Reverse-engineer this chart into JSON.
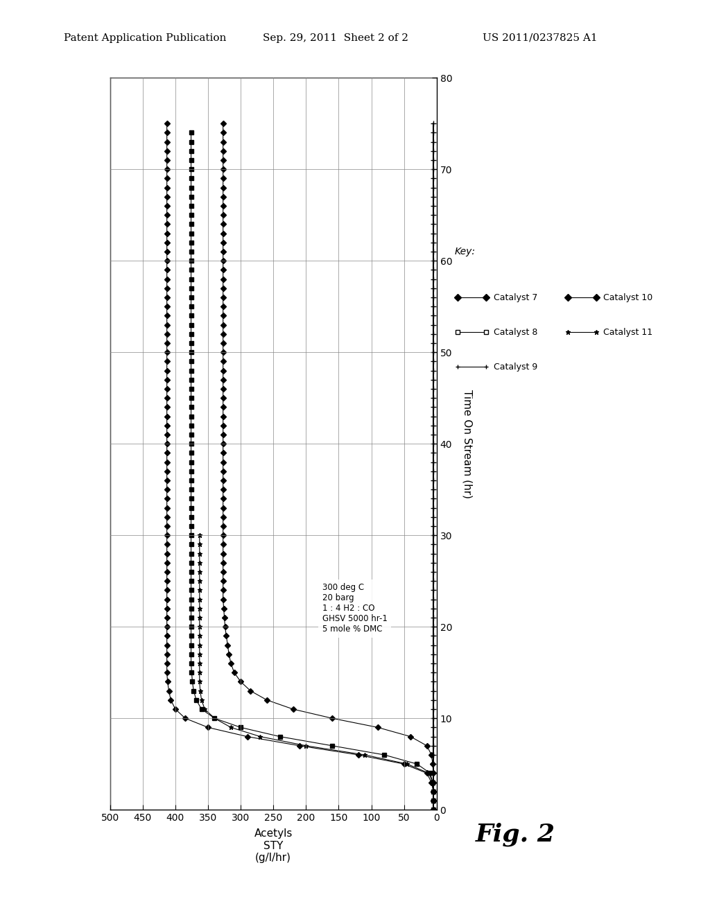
{
  "header_left": "Patent Application Publication",
  "header_center": "Sep. 29, 2011  Sheet 2 of 2",
  "header_right": "US 2011/0237825 A1",
  "xlabel_bottom": "Acetyls\nSTY\n(g/l/hr)",
  "xlabel_right": "Time On Stream (hr)",
  "xlim": [
    500,
    0
  ],
  "ylim": [
    0,
    80
  ],
  "xticks": [
    500,
    450,
    400,
    350,
    300,
    250,
    200,
    150,
    100,
    50,
    0
  ],
  "yticks": [
    0,
    10,
    20,
    30,
    40,
    50,
    60,
    70,
    80
  ],
  "annotation": "300 deg C\n20 barg\n1 : 4 H2 : CO\nGHSV 5000 hr-1\n5 mole % DMC",
  "fig_label": "Fig. 2",
  "key_label": "Key:",
  "background_color": "#ffffff",
  "grid_color": "#888888",
  "cat7_sty": [
    5,
    5,
    5,
    8,
    15,
    50,
    120,
    210,
    290,
    350,
    385,
    400,
    407,
    410,
    412,
    413,
    413,
    413,
    413,
    413,
    413,
    413,
    413,
    413,
    413,
    413,
    413,
    413,
    413,
    413,
    413,
    413,
    413,
    413,
    413,
    413,
    413,
    413,
    413,
    413,
    413,
    413,
    413,
    413,
    413,
    413,
    413,
    413,
    413,
    413,
    413,
    413,
    413,
    413,
    413,
    413,
    413,
    413,
    413,
    413,
    413,
    413,
    413,
    413,
    413,
    413,
    413,
    413,
    413,
    413,
    413,
    413,
    413,
    413,
    413,
    413
  ],
  "cat7_t": [
    0,
    1,
    2,
    3,
    4,
    5,
    6,
    7,
    8,
    9,
    10,
    11,
    12,
    13,
    14,
    15,
    16,
    17,
    18,
    19,
    20,
    21,
    22,
    23,
    24,
    25,
    26,
    27,
    28,
    29,
    30,
    31,
    32,
    33,
    34,
    35,
    36,
    37,
    38,
    39,
    40,
    41,
    42,
    43,
    44,
    45,
    46,
    47,
    48,
    49,
    50,
    51,
    52,
    53,
    54,
    55,
    56,
    57,
    58,
    59,
    60,
    61,
    62,
    63,
    64,
    65,
    66,
    67,
    68,
    69,
    70,
    71,
    72,
    73,
    74,
    75
  ],
  "cat8_sty": [
    5,
    5,
    5,
    6,
    10,
    30,
    80,
    160,
    240,
    300,
    340,
    360,
    368,
    372,
    374,
    375,
    376,
    376,
    376,
    376,
    376,
    376,
    376,
    376,
    376,
    376,
    376,
    376,
    376,
    376,
    376,
    376,
    376,
    376,
    376,
    376,
    376,
    376,
    376,
    376,
    376,
    376,
    376,
    376,
    376,
    376,
    376,
    376,
    376,
    376,
    376,
    376,
    376,
    376,
    376,
    376,
    376,
    376,
    376,
    376,
    376,
    376,
    376,
    376,
    376,
    376,
    376,
    376,
    376,
    376,
    376,
    376,
    376,
    376,
    376
  ],
  "cat8_t": [
    0,
    1,
    2,
    3,
    4,
    5,
    6,
    7,
    8,
    9,
    10,
    11,
    12,
    13,
    14,
    15,
    16,
    17,
    18,
    19,
    20,
    21,
    22,
    23,
    24,
    25,
    26,
    27,
    28,
    29,
    30,
    31,
    32,
    33,
    34,
    35,
    36,
    37,
    38,
    39,
    40,
    41,
    42,
    43,
    44,
    45,
    46,
    47,
    48,
    49,
    50,
    51,
    52,
    53,
    54,
    55,
    56,
    57,
    58,
    59,
    60,
    61,
    62,
    63,
    64,
    65,
    66,
    67,
    68,
    69,
    70,
    71,
    72,
    73,
    74
  ],
  "cat9_sty": [
    5,
    5,
    5,
    6,
    12,
    45,
    110,
    200,
    270,
    315,
    340,
    355,
    360,
    362,
    363,
    363,
    363,
    363,
    363,
    363,
    363,
    363,
    363,
    363,
    363,
    363,
    363,
    363,
    363,
    363,
    363
  ],
  "cat9_t": [
    0,
    1,
    2,
    3,
    4,
    5,
    6,
    7,
    8,
    9,
    10,
    11,
    12,
    13,
    14,
    15,
    16,
    17,
    18,
    19,
    20,
    21,
    22,
    23,
    24,
    25,
    26,
    27,
    28,
    29,
    30
  ],
  "cat10_sty": [
    5,
    5,
    5,
    5,
    5,
    6,
    8,
    15,
    40,
    90,
    160,
    220,
    260,
    285,
    300,
    310,
    315,
    318,
    320,
    322,
    324,
    325,
    326,
    327,
    327,
    327,
    327,
    327,
    327,
    327,
    327,
    327,
    327,
    327,
    327,
    327,
    327,
    327,
    327,
    327,
    327,
    327,
    327,
    327,
    327,
    327,
    327,
    327,
    327,
    327,
    327,
    327,
    327,
    327,
    327,
    327,
    327,
    327,
    327,
    327,
    327,
    327,
    327,
    327,
    327,
    327,
    327,
    327,
    327,
    327,
    327,
    327,
    327,
    327,
    327,
    327
  ],
  "cat10_t": [
    0,
    1,
    2,
    3,
    4,
    5,
    6,
    7,
    8,
    9,
    10,
    11,
    12,
    13,
    14,
    15,
    16,
    17,
    18,
    19,
    20,
    21,
    22,
    23,
    24,
    25,
    26,
    27,
    28,
    29,
    30,
    31,
    32,
    33,
    34,
    35,
    36,
    37,
    38,
    39,
    40,
    41,
    42,
    43,
    44,
    45,
    46,
    47,
    48,
    49,
    50,
    51,
    52,
    53,
    54,
    55,
    56,
    57,
    58,
    59,
    60,
    61,
    62,
    63,
    64,
    65,
    66,
    67,
    68,
    69,
    70,
    71,
    72,
    73,
    74,
    75
  ],
  "cat11_sty": [
    5,
    5,
    5,
    5,
    5,
    5,
    5,
    5,
    5,
    5,
    5,
    5,
    5,
    5,
    5,
    5,
    5,
    5,
    5,
    5,
    5,
    5,
    5,
    5,
    5,
    5,
    5,
    5,
    5,
    5,
    5,
    5,
    5,
    5,
    5,
    5,
    5,
    5,
    5,
    5,
    5,
    5,
    5,
    5,
    5,
    5,
    5,
    5,
    5,
    5,
    5,
    5,
    5,
    5,
    5,
    5,
    5,
    5,
    5,
    5,
    5,
    5,
    5,
    5,
    5,
    5,
    5,
    5,
    5,
    5,
    5,
    5,
    5,
    5,
    5,
    5
  ],
  "cat11_t": [
    0,
    1,
    2,
    3,
    4,
    5,
    6,
    7,
    8,
    9,
    10,
    11,
    12,
    13,
    14,
    15,
    16,
    17,
    18,
    19,
    20,
    21,
    22,
    23,
    24,
    25,
    26,
    27,
    28,
    29,
    30,
    31,
    32,
    33,
    34,
    35,
    36,
    37,
    38,
    39,
    40,
    41,
    42,
    43,
    44,
    45,
    46,
    47,
    48,
    49,
    50,
    51,
    52,
    53,
    54,
    55,
    56,
    57,
    58,
    59,
    60,
    61,
    62,
    63,
    64,
    65,
    66,
    67,
    68,
    69,
    70,
    71,
    72,
    73,
    74,
    75
  ]
}
